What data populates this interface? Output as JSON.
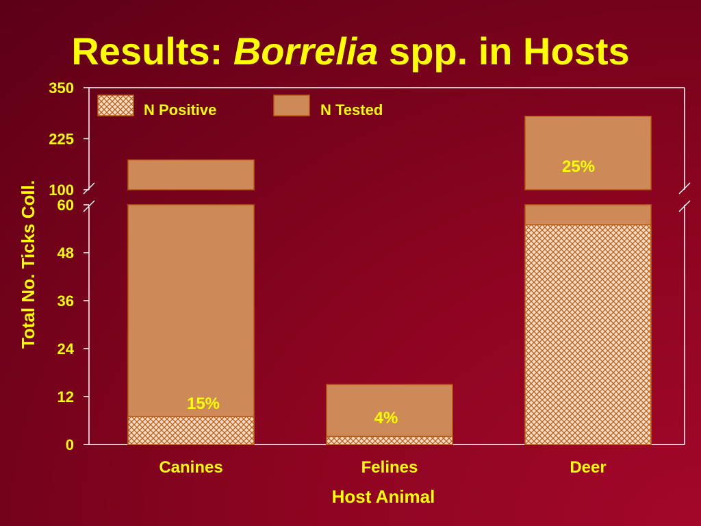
{
  "slide": {
    "title_prefix": "Results: ",
    "title_italic": "Borrelia",
    "title_suffix": " spp. in Hosts"
  },
  "chart_data": {
    "type": "bar",
    "stacked": false,
    "overlaid": true,
    "axis_break": {
      "lower_max": 60,
      "upper_min": 100
    },
    "categories": [
      "Canines",
      "Felines",
      "Deer"
    ],
    "series": [
      {
        "name": "N Positive",
        "values": [
          7,
          2,
          55
        ],
        "pattern": "crosshatch"
      },
      {
        "name": "N Tested",
        "values": [
          173,
          15,
          280
        ],
        "pattern": "solid"
      }
    ],
    "annotations": [
      "15%",
      "4%",
      "25%"
    ],
    "xlabel": "Host Animal",
    "ylabel": "Total No. Ticks Coll.",
    "yticks_lower": [
      "0",
      "12",
      "24",
      "36",
      "48",
      "60"
    ],
    "yticks_upper": [
      "100",
      "225",
      "350"
    ],
    "ylim_lower": [
      0,
      60
    ],
    "ylim_upper": [
      100,
      350
    ],
    "legend_position": "top-left",
    "grid": false,
    "colors": {
      "bar_fill": "#cd8a58",
      "bar_stroke": "#b85a10",
      "text": "#ffff00",
      "axis": "#ffffff"
    }
  }
}
